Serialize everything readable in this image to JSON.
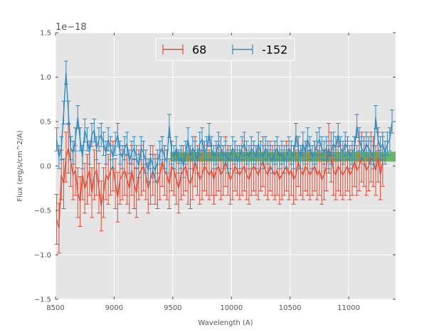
{
  "chart_data": {
    "type": "line",
    "xlabel": "Wavelength (A)",
    "ylabel": "Flux (erg/s/cm^2/A)",
    "offset_text": "1e−18",
    "xlim": [
      8500,
      11400
    ],
    "ylim": [
      -1.5,
      1.5
    ],
    "y_scale_note": "values in units of 1e-18",
    "x_ticks": [
      8500,
      9000,
      9500,
      10000,
      10500,
      11000
    ],
    "x_tick_labels": [
      "8500",
      "9000",
      "9500",
      "10000",
      "10500",
      "11000"
    ],
    "y_ticks": [
      -1.5,
      -1.0,
      -0.5,
      0.0,
      0.5,
      1.0,
      1.5
    ],
    "y_tick_labels": [
      "−1.5",
      "−1.0",
      "−0.5",
      "0.0",
      "0.5",
      "1.0",
      "1.5"
    ],
    "grid": true,
    "legend_position": "top-center",
    "band": {
      "x0": 9480,
      "x1": 11400,
      "y0": 0.05,
      "y1": 0.16,
      "color": "#4aa84a"
    },
    "x_start": 8510,
    "x_step": 20,
    "series": [
      {
        "name": "68",
        "color": "#E24A33",
        "values": [
          -0.6,
          -0.7,
          -0.1,
          -0.2,
          0.1,
          0.2,
          0.05,
          -0.1,
          -0.05,
          -0.3,
          -0.4,
          -0.1,
          -0.25,
          -0.15,
          -0.05,
          -0.3,
          -0.1,
          -0.05,
          -0.25,
          -0.45,
          -0.3,
          -0.1,
          -0.15,
          -0.05,
          0.0,
          -0.2,
          -0.35,
          -0.15,
          -0.1,
          -0.05,
          -0.15,
          -0.25,
          -0.05,
          -0.2,
          -0.3,
          -0.1,
          -0.05,
          0.0,
          -0.1,
          -0.25,
          -0.15,
          -0.05,
          -0.15,
          -0.2,
          -0.1,
          0.05,
          -0.05,
          -0.1,
          -0.2,
          0.0,
          -0.05,
          -0.15,
          -0.25,
          -0.1,
          -0.05,
          0.0,
          -0.15,
          -0.2,
          -0.1,
          0.05,
          -0.05,
          -0.15,
          -0.1,
          0.0,
          -0.05,
          -0.1,
          -0.05,
          -0.15,
          -0.05,
          0.0,
          -0.1,
          -0.05,
          0.05,
          -0.05,
          -0.15,
          -0.1,
          0.0,
          -0.05,
          -0.1,
          -0.05,
          0.0,
          -0.1,
          -0.15,
          -0.05,
          0.0,
          -0.05,
          -0.1,
          0.0,
          0.05,
          -0.05,
          -0.1,
          0.0,
          -0.05,
          -0.1,
          -0.05,
          -0.15,
          -0.1,
          -0.05,
          0.0,
          -0.1,
          -0.05,
          -0.15,
          -0.1,
          0.05,
          -0.05,
          -0.1,
          0.0,
          -0.05,
          -0.1,
          -0.05,
          0.0,
          -0.1,
          -0.05,
          -0.15,
          -0.1,
          0.0,
          0.2,
          0.1,
          -0.05,
          -0.1,
          0.0,
          -0.05,
          -0.1,
          -0.05,
          0.0,
          -0.1,
          -0.05,
          0.05,
          -0.05,
          0.0,
          0.1,
          0.05,
          -0.05,
          0.0,
          0.1,
          0.05,
          -0.05,
          0.1,
          -0.1,
          0.05
        ],
        "err": 0.28
      },
      {
        "name": "-152",
        "color": "#348ABD",
        "values": [
          0.3,
          0.1,
          0.2,
          0.6,
          1.05,
          0.6,
          0.2,
          0.15,
          0.3,
          0.55,
          0.3,
          0.1,
          0.4,
          0.3,
          0.15,
          0.35,
          0.4,
          0.2,
          0.3,
          0.35,
          0.25,
          0.15,
          0.3,
          0.2,
          0.1,
          0.25,
          0.35,
          0.15,
          0.1,
          0.2,
          0.25,
          0.05,
          0.15,
          0.2,
          0.1,
          0.0,
          0.2,
          0.15,
          0.05,
          -0.05,
          0.1,
          0.0,
          -0.05,
          0.05,
          0.15,
          0.2,
          0.1,
          0.05,
          0.45,
          0.15,
          0.1,
          0.2,
          0.05,
          0.1,
          0.0,
          0.15,
          0.3,
          0.1,
          0.2,
          0.15,
          0.05,
          0.25,
          0.3,
          0.15,
          0.2,
          0.35,
          0.2,
          0.1,
          0.15,
          0.25,
          0.2,
          0.1,
          0.15,
          0.05,
          0.1,
          0.2,
          0.15,
          0.05,
          0.1,
          0.2,
          0.25,
          0.15,
          0.1,
          0.2,
          0.15,
          0.1,
          0.25,
          0.15,
          0.1,
          0.2,
          0.15,
          0.1,
          0.05,
          0.15,
          0.2,
          0.1,
          0.15,
          0.05,
          0.1,
          0.2,
          0.15,
          0.1,
          0.35,
          0.2,
          0.1,
          0.25,
          0.15,
          0.3,
          0.2,
          0.1,
          0.15,
          0.25,
          0.3,
          0.2,
          0.15,
          0.2,
          0.1,
          0.15,
          0.25,
          0.2,
          0.35,
          0.2,
          0.15,
          0.25,
          0.2,
          0.1,
          0.15,
          0.2,
          0.45,
          0.3,
          0.2,
          0.15,
          0.25,
          0.2,
          0.15,
          0.1,
          0.55,
          0.3,
          0.2,
          0.25,
          0.15,
          0.25,
          0.3,
          0.5
        ],
        "err": 0.13
      }
    ]
  }
}
